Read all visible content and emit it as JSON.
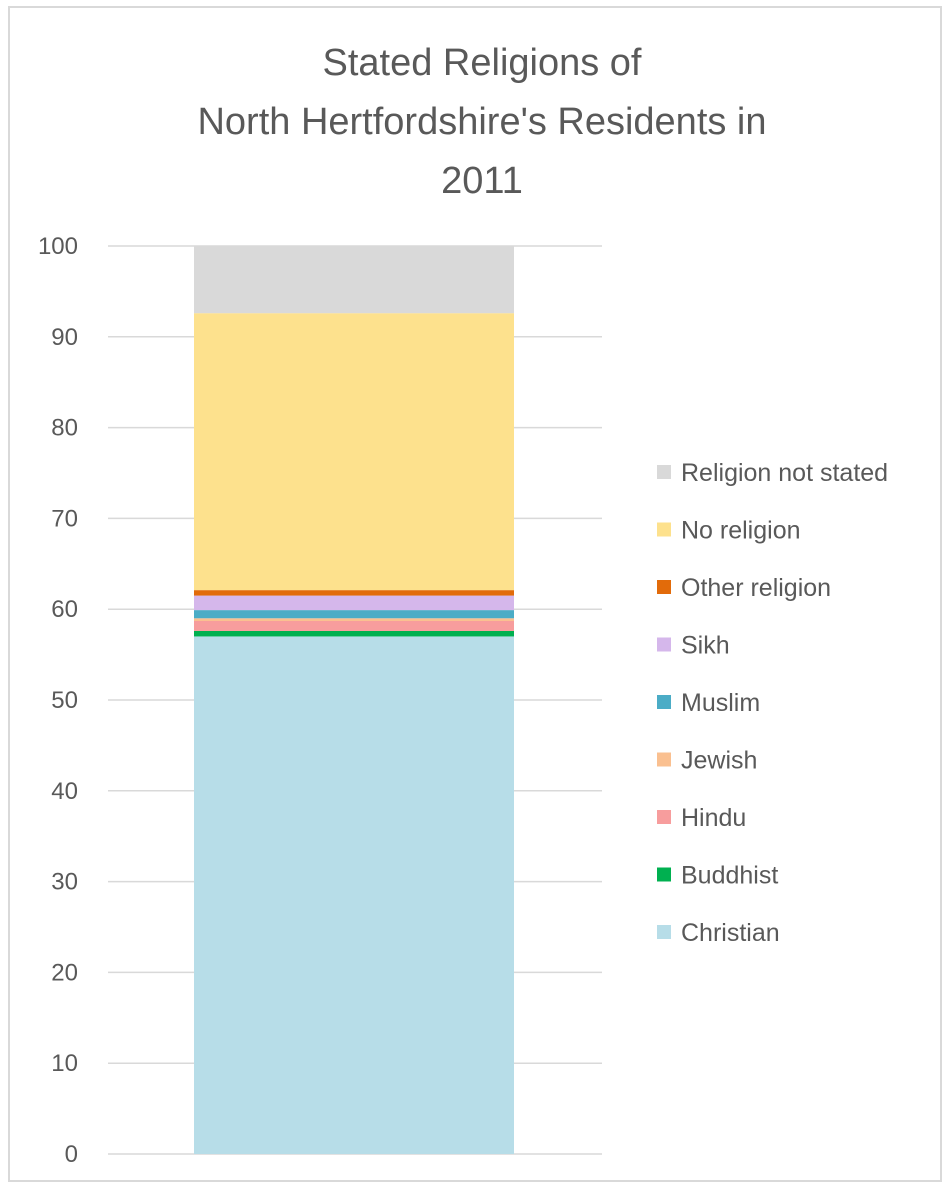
{
  "chart_data": {
    "type": "bar",
    "stacked": true,
    "title_lines": [
      "Stated Religions of",
      "North Hertfordshire's Residents in",
      "2011"
    ],
    "categories": [
      ""
    ],
    "ylim": [
      0,
      100
    ],
    "yticks": [
      "0",
      "10",
      "20",
      "30",
      "40",
      "50",
      "60",
      "70",
      "80",
      "90",
      "100"
    ],
    "grid": true,
    "legend_position": "right",
    "series": [
      {
        "name": "Christian",
        "values": [
          57.0
        ],
        "color": "#b7dde8"
      },
      {
        "name": "Buddhist",
        "values": [
          0.6
        ],
        "color": "#00b050"
      },
      {
        "name": "Hindu",
        "values": [
          1.1
        ],
        "color": "#f79d9d"
      },
      {
        "name": "Jewish",
        "values": [
          0.3
        ],
        "color": "#fac090"
      },
      {
        "name": "Muslim",
        "values": [
          0.9
        ],
        "color": "#4bacc6"
      },
      {
        "name": "Sikh",
        "values": [
          1.6
        ],
        "color": "#d5b7eb"
      },
      {
        "name": "Other religion",
        "values": [
          0.6
        ],
        "color": "#e26b0a"
      },
      {
        "name": "No religion",
        "values": [
          30.5
        ],
        "color": "#fde18d"
      },
      {
        "name": "Religion not stated",
        "values": [
          7.4
        ],
        "color": "#d9d9d9"
      }
    ]
  }
}
